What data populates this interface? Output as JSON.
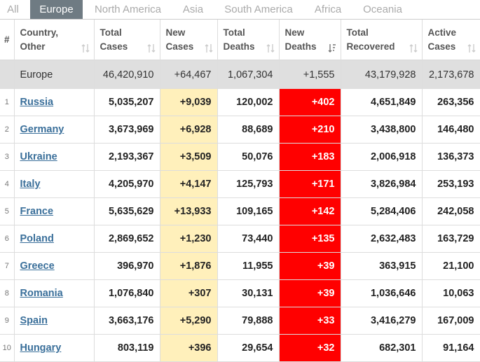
{
  "tabs": [
    "All",
    "Europe",
    "North America",
    "Asia",
    "South America",
    "Africa",
    "Oceania"
  ],
  "active_tab": "Europe",
  "headers": {
    "index": "#",
    "country": [
      "Country,",
      "Other"
    ],
    "total_cases": [
      "Total",
      "Cases"
    ],
    "new_cases": [
      "New",
      "Cases"
    ],
    "total_deaths": [
      "Total",
      "Deaths"
    ],
    "new_deaths": [
      "New",
      "Deaths"
    ],
    "total_recovered": [
      "Total",
      "Recovered"
    ],
    "active_cases": [
      "Active",
      "Cases"
    ]
  },
  "total_row": {
    "country": "Europe",
    "total_cases": "46,420,910",
    "new_cases": "+64,467",
    "total_deaths": "1,067,304",
    "new_deaths": "+1,555",
    "total_recovered": "43,179,928",
    "active_cases": "2,173,678"
  },
  "rows": [
    {
      "index": "1",
      "country": "Russia",
      "total_cases": "5,035,207",
      "new_cases": "+9,039",
      "total_deaths": "120,002",
      "new_deaths": "+402",
      "total_recovered": "4,651,849",
      "active_cases": "263,356"
    },
    {
      "index": "2",
      "country": "Germany",
      "total_cases": "3,673,969",
      "new_cases": "+6,928",
      "total_deaths": "88,689",
      "new_deaths": "+210",
      "total_recovered": "3,438,800",
      "active_cases": "146,480"
    },
    {
      "index": "3",
      "country": "Ukraine",
      "total_cases": "2,193,367",
      "new_cases": "+3,509",
      "total_deaths": "50,076",
      "new_deaths": "+183",
      "total_recovered": "2,006,918",
      "active_cases": "136,373"
    },
    {
      "index": "4",
      "country": "Italy",
      "total_cases": "4,205,970",
      "new_cases": "+4,147",
      "total_deaths": "125,793",
      "new_deaths": "+171",
      "total_recovered": "3,826,984",
      "active_cases": "253,193"
    },
    {
      "index": "5",
      "country": "France",
      "total_cases": "5,635,629",
      "new_cases": "+13,933",
      "total_deaths": "109,165",
      "new_deaths": "+142",
      "total_recovered": "5,284,406",
      "active_cases": "242,058"
    },
    {
      "index": "6",
      "country": "Poland",
      "total_cases": "2,869,652",
      "new_cases": "+1,230",
      "total_deaths": "73,440",
      "new_deaths": "+135",
      "total_recovered": "2,632,483",
      "active_cases": "163,729"
    },
    {
      "index": "7",
      "country": "Greece",
      "total_cases": "396,970",
      "new_cases": "+1,876",
      "total_deaths": "11,955",
      "new_deaths": "+39",
      "total_recovered": "363,915",
      "active_cases": "21,100"
    },
    {
      "index": "8",
      "country": "Romania",
      "total_cases": "1,076,840",
      "new_cases": "+307",
      "total_deaths": "30,131",
      "new_deaths": "+39",
      "total_recovered": "1,036,646",
      "active_cases": "10,063"
    },
    {
      "index": "9",
      "country": "Spain",
      "total_cases": "3,663,176",
      "new_cases": "+5,290",
      "total_deaths": "79,888",
      "new_deaths": "+33",
      "total_recovered": "3,416,279",
      "active_cases": "167,009"
    },
    {
      "index": "10",
      "country": "Hungary",
      "total_cases": "803,119",
      "new_cases": "+396",
      "total_deaths": "29,654",
      "new_deaths": "+32",
      "total_recovered": "682,301",
      "active_cases": "91,164"
    }
  ],
  "colors": {
    "active_tab_bg": "#6f7b83",
    "new_cases_bg": "#fff0bb",
    "new_deaths_bg": "#ff0000",
    "total_row_bg": "#dfdfdf",
    "country_link": "#3a6f9a"
  },
  "icons": {
    "sort_default": "sort-arrows-icon",
    "sort_desc_active": "sort-desc-icon"
  }
}
